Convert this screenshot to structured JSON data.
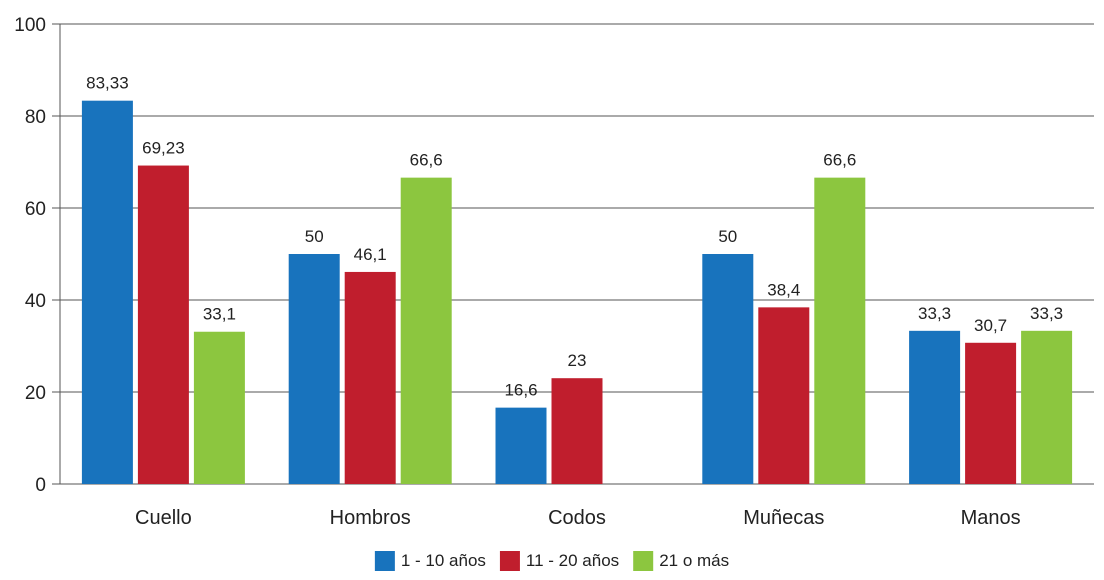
{
  "chart_data": {
    "type": "bar",
    "title": "",
    "xlabel": "",
    "ylabel": "",
    "ylim": [
      0,
      100
    ],
    "yticks": [
      0,
      20,
      40,
      60,
      80,
      100
    ],
    "grid": true,
    "legend_position": "bottom-center",
    "categories": [
      "Cuello",
      "Hombros",
      "Codos",
      "Muñecas",
      "Manos"
    ],
    "series": [
      {
        "name": "1 - 10 años",
        "color": "#1873bd",
        "values": [
          83.33,
          50,
          16.6,
          50,
          33.3
        ],
        "labels": [
          "83,33",
          "50",
          "16,6",
          "50",
          "33,3"
        ]
      },
      {
        "name": "11 - 20 años",
        "color": "#c01e2d",
        "values": [
          69.23,
          46.1,
          23,
          38.4,
          30.7
        ],
        "labels": [
          "69,23",
          "46,1",
          "23",
          "38,4",
          "30,7"
        ]
      },
      {
        "name": "21 o más",
        "color": "#8cc63f",
        "values": [
          33.1,
          66.6,
          null,
          66.6,
          33.3
        ],
        "labels": [
          "33,1",
          "66,6",
          null,
          "66,6",
          "33,3"
        ]
      }
    ]
  }
}
